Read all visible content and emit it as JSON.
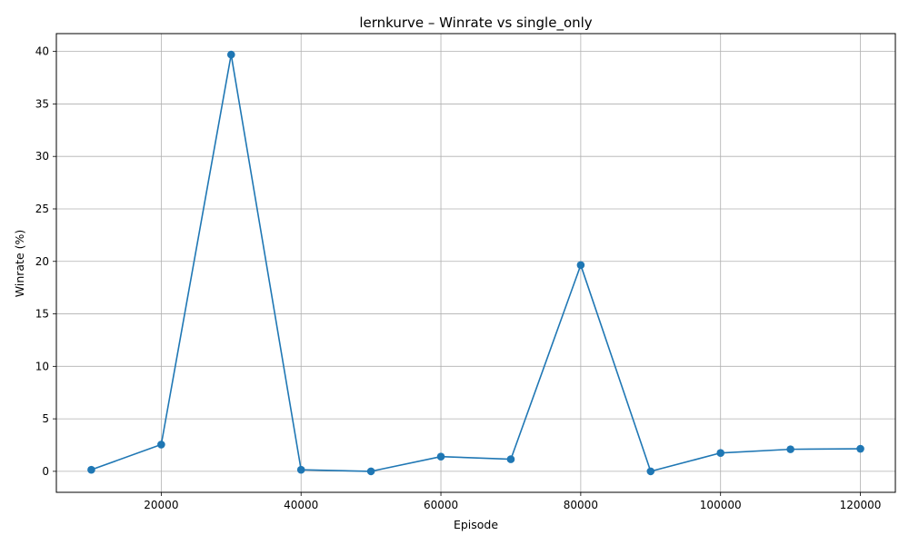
{
  "chart_data": {
    "type": "line",
    "title": "lernkurve – Winrate vs single_only",
    "xlabel": "Episode",
    "ylabel": "Winrate (%)",
    "xlim": [
      5000,
      125000
    ],
    "ylim": [
      -2,
      41.7
    ],
    "xticks": [
      20000,
      40000,
      60000,
      80000,
      100000,
      120000
    ],
    "yticks": [
      0,
      5,
      10,
      15,
      20,
      25,
      30,
      35,
      40
    ],
    "grid": true,
    "colors": {
      "line": "#1f77b4"
    },
    "series": [
      {
        "x": [
          10000,
          20000,
          30000,
          40000,
          50000,
          60000,
          70000,
          80000,
          90000,
          100000,
          110000,
          120000
        ],
        "values": [
          0.15,
          2.55,
          39.7,
          0.15,
          0.0,
          1.4,
          1.15,
          19.65,
          0.0,
          1.75,
          2.1,
          2.15
        ]
      }
    ]
  }
}
